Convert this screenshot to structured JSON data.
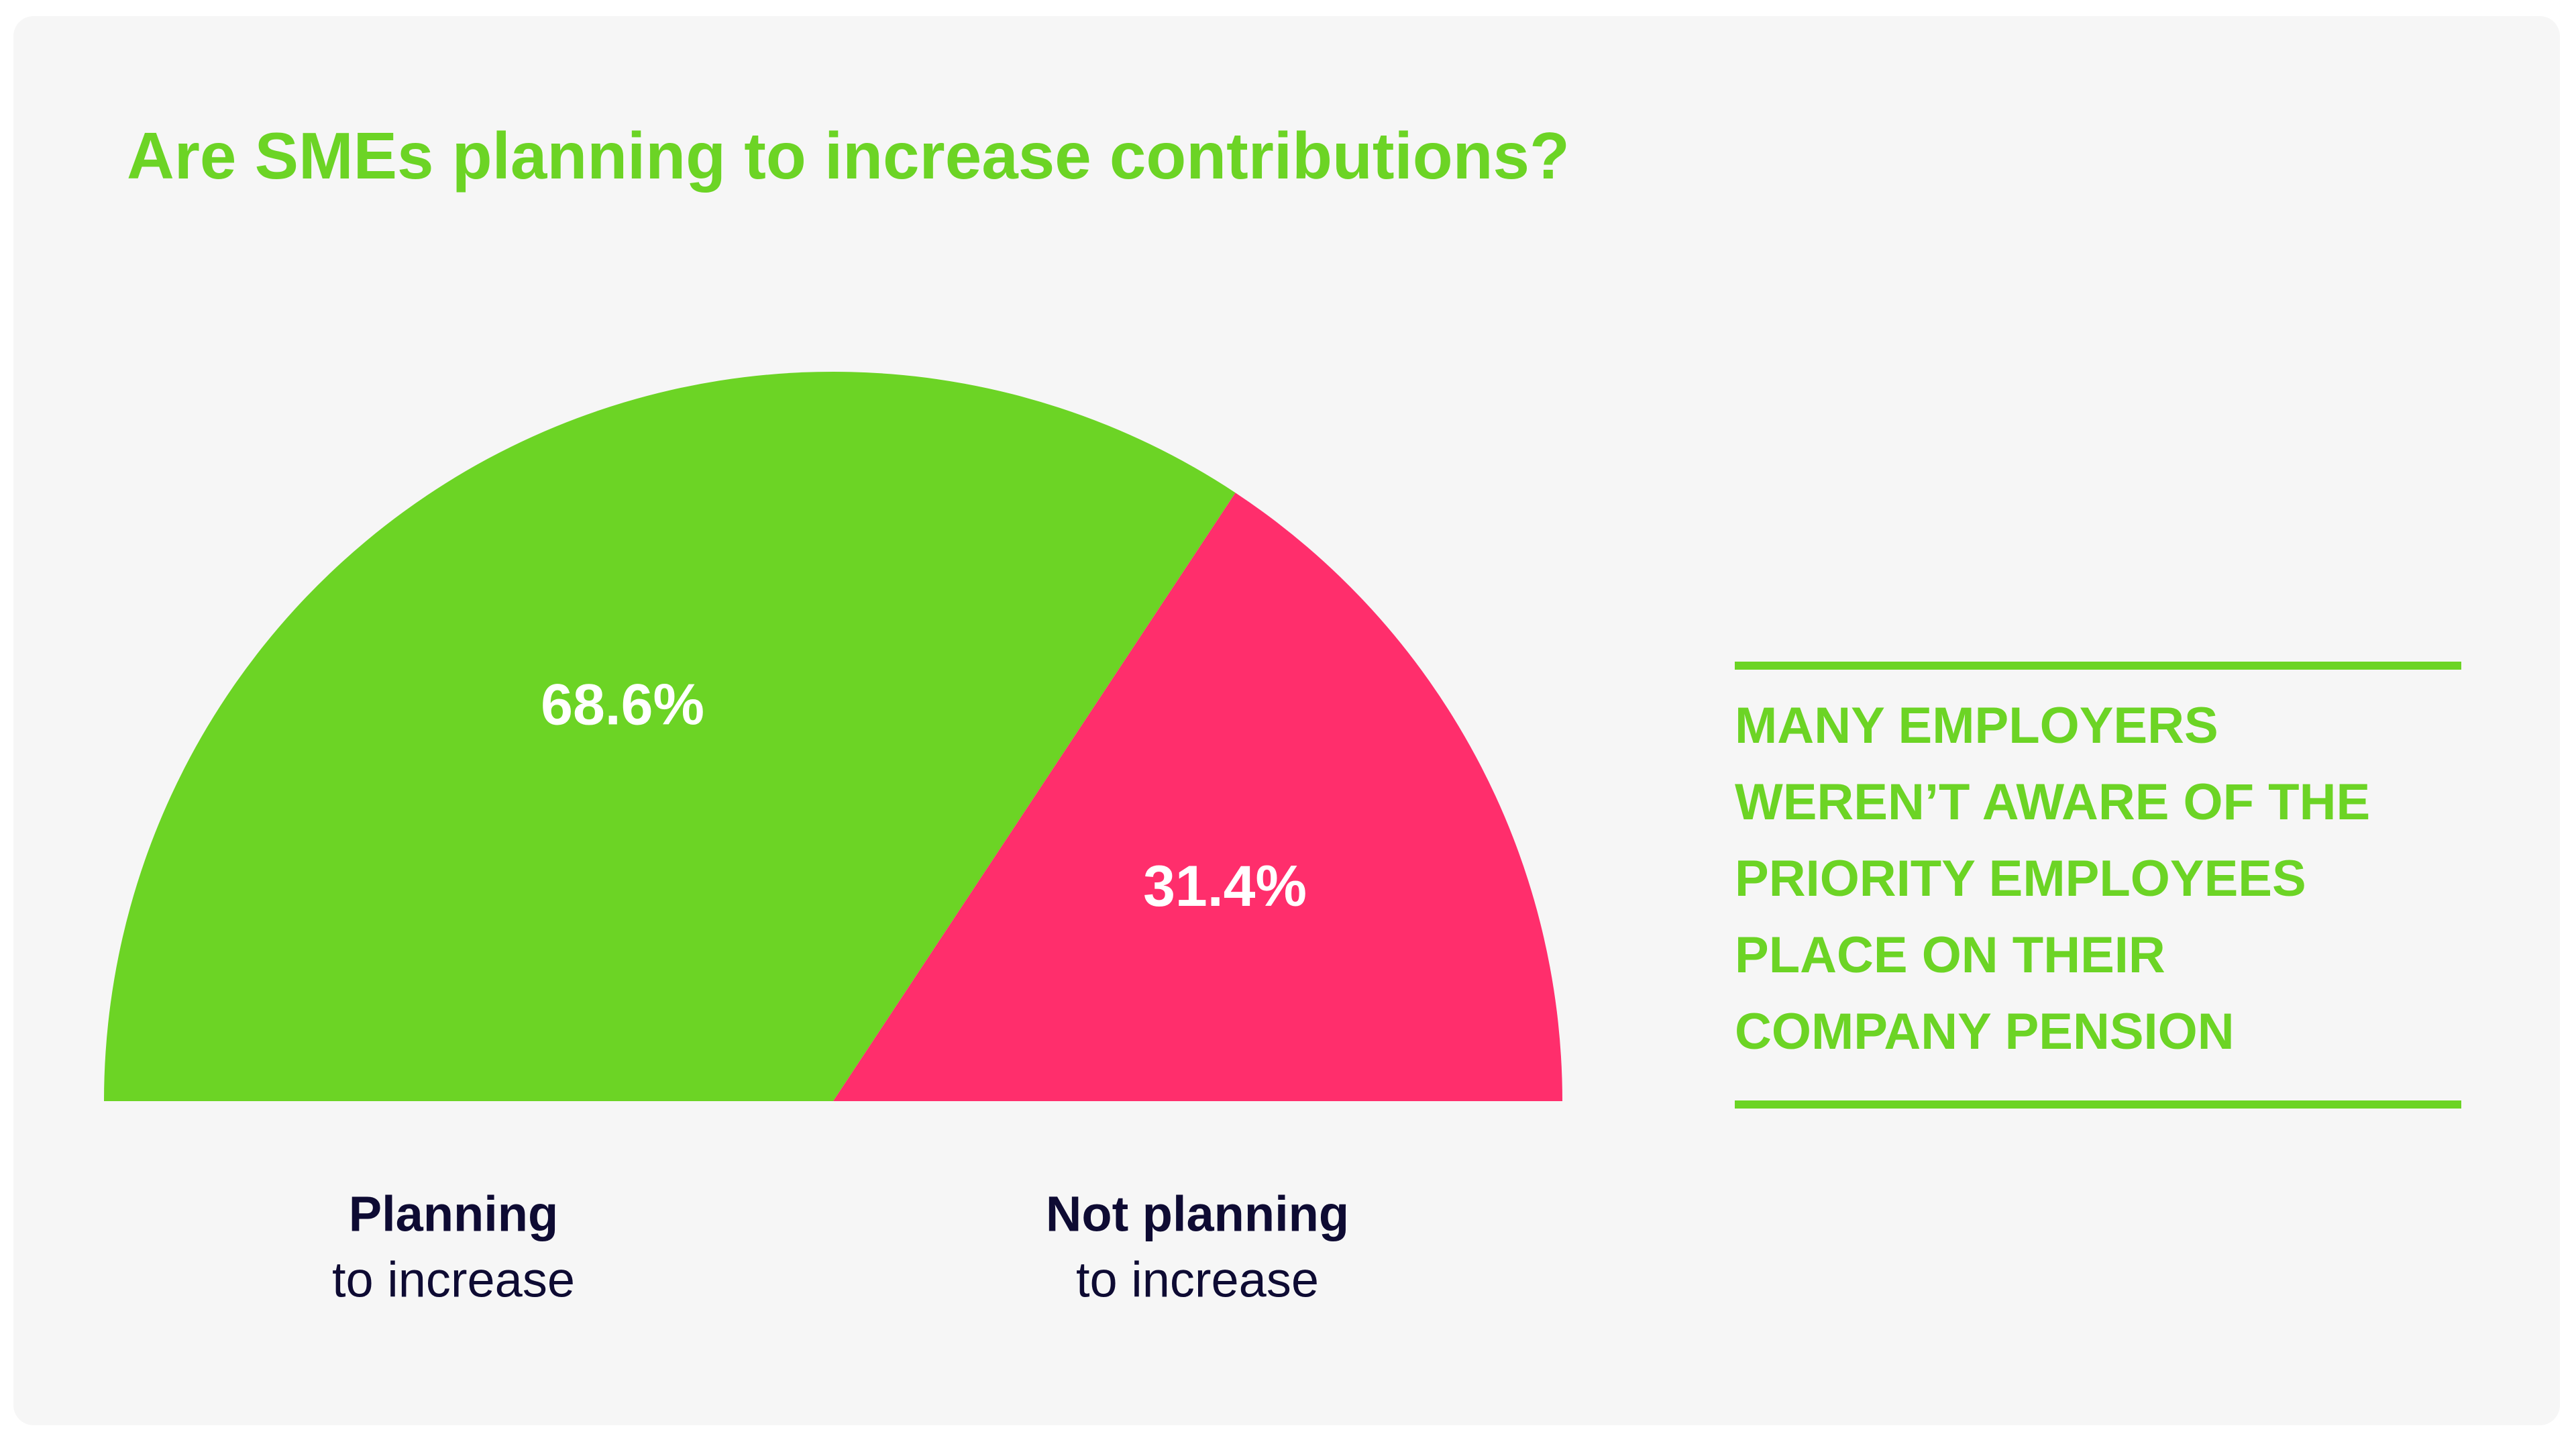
{
  "chart_data": {
    "type": "semicircle-pie",
    "title": "Are SMEs planning to increase contributions?",
    "categories": [
      "Planning",
      "Not planning"
    ],
    "category_sublabels": [
      "to increase",
      "to increase"
    ],
    "values": [
      68.6,
      31.4
    ],
    "value_labels": [
      "68.6%",
      "31.4%"
    ],
    "colors": [
      "#6cd425",
      "#ff2e6c"
    ]
  },
  "callout": {
    "lines": [
      "MANY EMPLOYERS",
      "WEREN’T AWARE OF THE",
      "PRIORITY EMPLOYEES",
      "PLACE ON THEIR",
      "COMPANY PENSION"
    ]
  }
}
